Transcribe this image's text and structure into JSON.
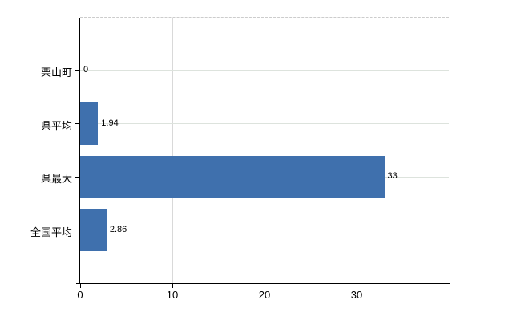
{
  "chart_data": {
    "type": "bar",
    "orientation": "horizontal",
    "title": "",
    "xlabel": "",
    "ylabel": "",
    "categories": [
      "栗山町",
      "県平均",
      "県最大",
      "全国平均"
    ],
    "values": [
      0,
      1.94,
      33,
      2.86
    ],
    "value_labels": [
      "0",
      "1.94",
      "33",
      "2.86"
    ],
    "xlim": [
      0,
      40
    ],
    "xticks": [
      0,
      10,
      20,
      30
    ],
    "xtick_labels": [
      "0",
      "10",
      "20",
      "30"
    ],
    "grid": "on",
    "legend": "none",
    "colors": {
      "bar": "#3f70ad",
      "axis": "#000000",
      "vertical_grid": "#d9d9d9",
      "horizontal_grid": "#dde3dd",
      "top_border": "#cccccc",
      "text": "#000000",
      "background": "#ffffff"
    }
  }
}
